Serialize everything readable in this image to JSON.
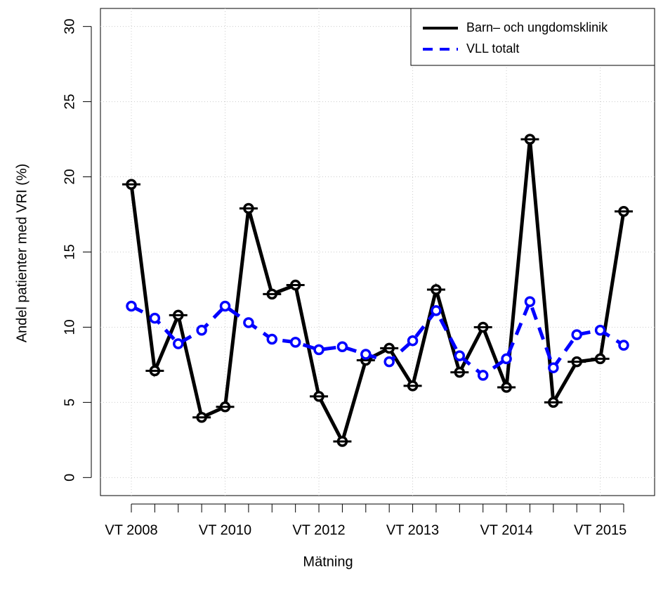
{
  "chart_data": {
    "type": "line",
    "x_label": "Mätning",
    "y_label": "Andel patienter med VRI (%)",
    "categories": [
      "VT 2008",
      null,
      null,
      null,
      "VT 2010",
      null,
      null,
      null,
      "VT 2012",
      null,
      null,
      null,
      "VT 2013",
      null,
      null,
      null,
      "VT 2014",
      null,
      null,
      null,
      "VT 2015",
      null
    ],
    "series": [
      {
        "name": "Barn– och ungdomsklinik",
        "color": "#000000",
        "style": "solid",
        "values": [
          19.5,
          7.1,
          10.8,
          4.0,
          4.7,
          17.9,
          12.2,
          12.8,
          5.4,
          2.4,
          7.8,
          8.6,
          6.1,
          12.5,
          7.0,
          10.0,
          6.0,
          22.5,
          5.0,
          7.7,
          7.9,
          17.7
        ]
      },
      {
        "name": "VLL totalt",
        "color": "#0000ff",
        "style": "dashed",
        "values": [
          11.4,
          10.6,
          8.9,
          9.8,
          11.4,
          10.3,
          9.2,
          9.0,
          8.5,
          8.7,
          8.2,
          7.7,
          9.1,
          11.1,
          8.1,
          6.8,
          7.9,
          11.7,
          7.3,
          9.5,
          9.8,
          8.8
        ]
      }
    ],
    "ylim": [
      -1.2,
      31.2
    ],
    "yticks": [
      0,
      5,
      10,
      15,
      20,
      25,
      30
    ],
    "grid": true,
    "legend": "top-right"
  }
}
